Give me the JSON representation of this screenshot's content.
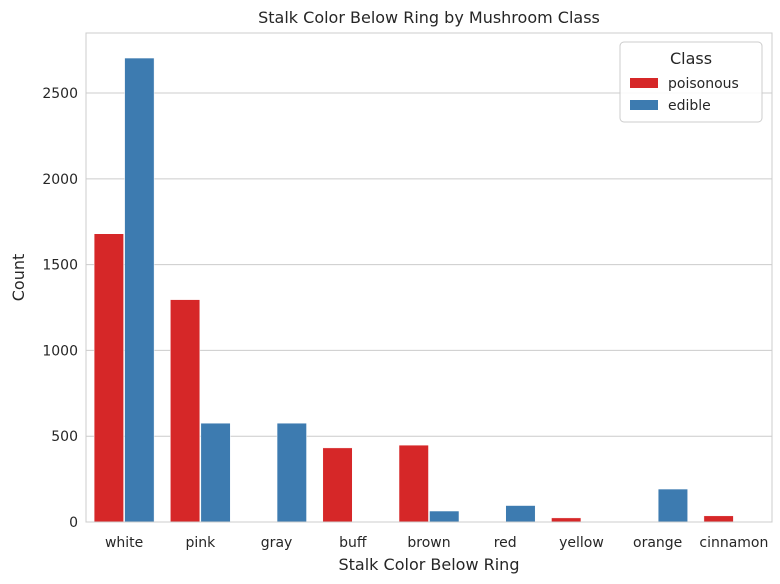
{
  "chart_data": {
    "type": "bar",
    "title": "Stalk Color Below Ring by Mushroom Class",
    "xlabel": "Stalk Color Below Ring",
    "ylabel": "Count",
    "categories": [
      "white",
      "pink",
      "gray",
      "buff",
      "brown",
      "red",
      "yellow",
      "orange",
      "cinnamon"
    ],
    "series": [
      {
        "name": "poisonous",
        "color": "#d62728",
        "values": [
          1680,
          1296,
          0,
          432,
          448,
          0,
          24,
          0,
          36
        ]
      },
      {
        "name": "edible",
        "color": "#3d7bb0",
        "values": [
          2704,
          576,
          576,
          0,
          64,
          96,
          0,
          192,
          0
        ]
      }
    ],
    "ylim": [
      0,
      2850
    ],
    "yticks": [
      0,
      500,
      1000,
      1500,
      2000,
      2500
    ],
    "grid": "horizontal",
    "legend": {
      "title": "Class",
      "placement": "top-right"
    }
  }
}
